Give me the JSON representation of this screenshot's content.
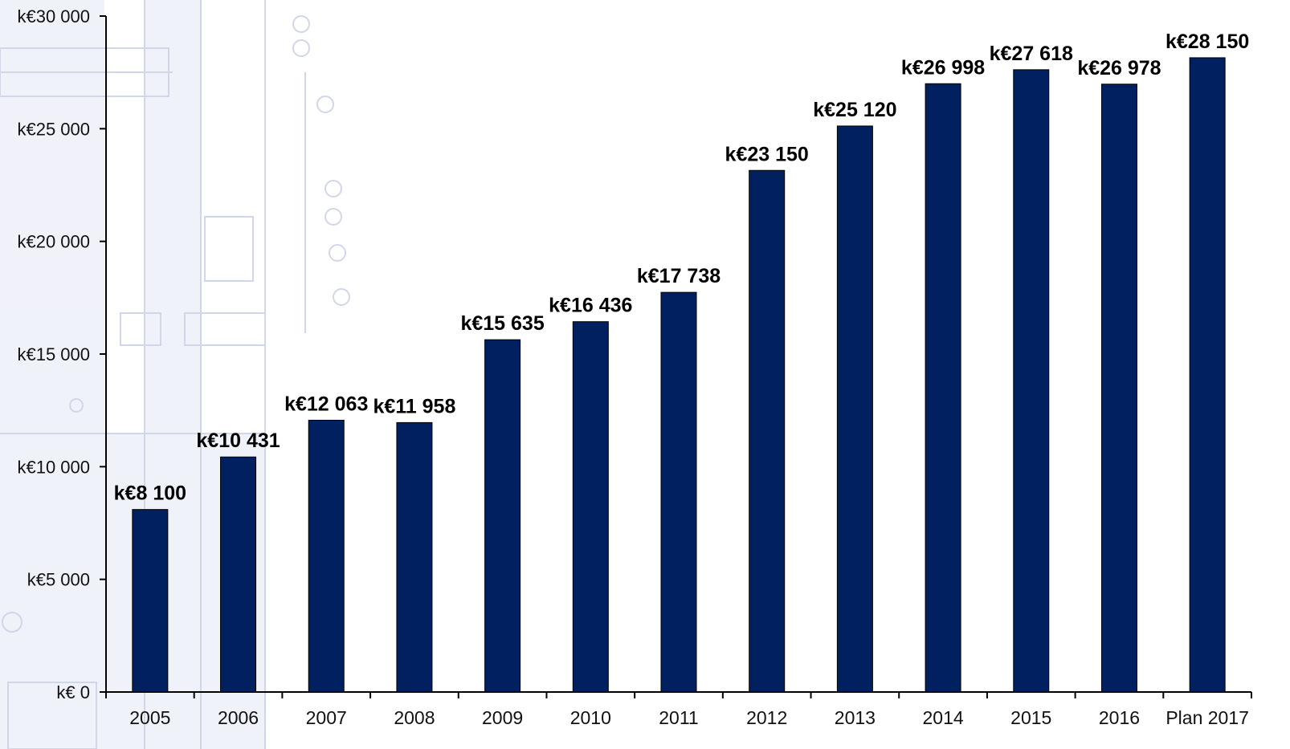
{
  "chart_data": {
    "type": "bar",
    "categories": [
      "2005",
      "2006",
      "2007",
      "2008",
      "2009",
      "2010",
      "2011",
      "2012",
      "2013",
      "2014",
      "2015",
      "2016",
      "Plan 2017"
    ],
    "values": [
      8100,
      10431,
      12063,
      11958,
      15635,
      16436,
      17738,
      23150,
      25120,
      26998,
      27618,
      26978,
      28150
    ],
    "data_labels": [
      "k€8 100",
      "k€10 431",
      "k€12 063",
      "k€11 958",
      "k€15 635",
      "k€16 436",
      "k€17 738",
      "k€23 150",
      "k€25 120",
      "k€26 998",
      "k€27 618",
      "k€26 978",
      "k€28 150"
    ],
    "yticks": [
      0,
      5000,
      10000,
      15000,
      20000,
      25000,
      30000
    ],
    "ytick_labels": [
      "k€ 0",
      "k€5 000",
      "k€10 000",
      "k€15 000",
      "k€20 000",
      "k€25 000",
      "k€30 000"
    ],
    "ylim": [
      0,
      30000
    ],
    "grid": false,
    "legend": "none",
    "bar_color": "#002060",
    "title": "",
    "xlabel": "",
    "ylabel": ""
  }
}
